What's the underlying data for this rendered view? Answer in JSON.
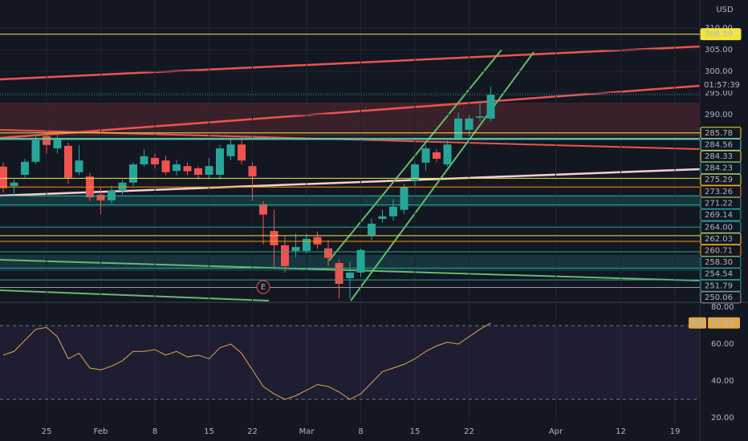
{
  "chart_data": [
    {
      "type": "candlestick",
      "currency": "USD",
      "countdown": "01:57:39",
      "event_marker": "E",
      "categories": [
        null,
        null,
        null,
        null,
        "25",
        null,
        null,
        null,
        null,
        "Feb",
        null,
        null,
        null,
        null,
        "8",
        null,
        null,
        null,
        null,
        "15",
        null,
        null,
        null,
        "22",
        null,
        null,
        null,
        null,
        "Mar",
        null,
        null,
        null,
        null,
        "8",
        null,
        null,
        null,
        null,
        "15",
        null,
        null,
        null,
        null,
        "22",
        null,
        null,
        null,
        null,
        null,
        null,
        null,
        "Apr",
        null,
        null,
        null,
        null,
        null,
        "12",
        null,
        null,
        null,
        null,
        "19",
        null,
        null
      ],
      "open": [
        278,
        273.5,
        276.1,
        279.1,
        285,
        282.2,
        282.8,
        276.7,
        275.7,
        271.5,
        270.2,
        272.4,
        274.3,
        278.5,
        280,
        279.4,
        277,
        278.1,
        277.6,
        276.1,
        276.1,
        280.4,
        283.1,
        278.1,
        269.3,
        263.1,
        259.8,
        258.5,
        258.5,
        261.7,
        259.1,
        255.7,
        252.2,
        253.5,
        262.2,
        265.9,
        266.5,
        268,
        274.8,
        278.9,
        281.3,
        278.5,
        284.6,
        286.5,
        289.3,
        289.1,
        null,
        null,
        null,
        null,
        null,
        null,
        null,
        null,
        null,
        null,
        null,
        null,
        null,
        null,
        null,
        null,
        null,
        null,
        null
      ],
      "high": [
        279,
        275,
        279.8,
        285.5,
        286,
        285.5,
        283.5,
        283,
        276.5,
        273,
        273.5,
        275,
        279,
        282,
        281,
        280.5,
        279.5,
        279,
        278,
        280,
        283,
        284.5,
        284.5,
        279,
        270,
        268,
        262,
        262.5,
        262.5,
        263,
        261,
        256.5,
        256,
        259,
        266,
        268,
        270.5,
        274,
        279,
        283,
        282,
        284,
        290.5,
        290,
        293,
        296.5,
        null,
        null,
        null,
        null,
        null,
        null,
        null,
        null,
        null,
        null,
        null,
        null,
        null,
        null,
        null,
        null,
        null,
        null,
        null
      ],
      "low": [
        272,
        271,
        275.5,
        278.5,
        281,
        281,
        274,
        276,
        270,
        267,
        269.5,
        271.5,
        273.5,
        278,
        277.5,
        276,
        276,
        276,
        275,
        275,
        275,
        279.5,
        278.5,
        270,
        260,
        254.4,
        253.5,
        257,
        258,
        259,
        255,
        247.5,
        247.5,
        252.5,
        261,
        265,
        265.5,
        267,
        273.5,
        277,
        279,
        278,
        284,
        285,
        288.5,
        288.5,
        null,
        null,
        null,
        null,
        null,
        null,
        null,
        null,
        null,
        null,
        null,
        null,
        null,
        null,
        null,
        null,
        null,
        null,
        null
      ],
      "close": [
        273,
        274.3,
        279.1,
        284.1,
        283,
        284.3,
        275.4,
        279.4,
        270.9,
        270.2,
        272.4,
        274.3,
        278.5,
        280.4,
        278.5,
        276.7,
        278.5,
        276.9,
        276.1,
        278.1,
        282.2,
        283.1,
        279.4,
        275.7,
        266.9,
        259.8,
        255,
        259.4,
        261.3,
        260,
        256.9,
        250.9,
        253.5,
        258.7,
        264.8,
        266.5,
        268.7,
        273.3,
        278.5,
        282.2,
        279.8,
        283.1,
        289.1,
        289.1,
        289.6,
        294.6,
        null,
        null,
        null,
        null,
        null,
        null,
        null,
        null,
        null,
        null,
        null,
        null,
        null,
        null,
        null,
        null,
        null,
        null,
        null
      ],
      "up_color": "#26a69a",
      "down_color": "#ef5350",
      "ylim": [
        247,
        316.5
      ],
      "yticks": [
        {
          "value": 290,
          "label": "290.00"
        },
        {
          "value": 295,
          "label": "295.00"
        },
        {
          "value": 300,
          "label": "300.00"
        },
        {
          "value": 305,
          "label": "305.00"
        },
        {
          "value": 310,
          "label": "310.00"
        }
      ],
      "levels": [
        {
          "value": 308.59,
          "label": "308.59",
          "color": "#f0e442"
        },
        {
          "value": 285.78,
          "label": "285.78",
          "color": "#f0e442"
        },
        {
          "value": 284.56,
          "label": "284.56",
          "color": "#4dd0e1"
        },
        {
          "value": 284.33,
          "label": "284.33",
          "color": "#f0e442"
        },
        {
          "value": 284.23,
          "label": "284.23",
          "color": "#26a69a"
        },
        {
          "value": 275.29,
          "label": "275.29",
          "color": "#f0e442"
        },
        {
          "value": 273.26,
          "label": "273.26",
          "color": "#ff9800"
        },
        {
          "value": 271.22,
          "label": "271.22",
          "color": "#26a69a"
        },
        {
          "value": 269.14,
          "label": "269.14",
          "color": "#26a69a"
        },
        {
          "value": 264,
          "label": "264.00",
          "color": "#26a69a"
        },
        {
          "value": 262.03,
          "label": "262.03",
          "color": "#f0e442"
        },
        {
          "value": 260.71,
          "label": "260.71",
          "color": "#ff9800"
        },
        {
          "value": 258.3,
          "label": "258.30",
          "color": "#26a69a"
        },
        {
          "value": 254.54,
          "label": "254.54",
          "color": "#26a69a"
        },
        {
          "value": 251.79,
          "label": "251.79",
          "color": "#26a69a"
        },
        {
          "value": 250.06,
          "label": "250.06",
          "color": "#9598a1"
        }
      ]
    },
    {
      "type": "line",
      "name": "RSI",
      "color": "#e0a84b",
      "last_value": 71.43,
      "values": [
        54,
        56,
        62,
        68,
        69,
        64,
        52,
        55,
        47,
        46,
        48,
        51,
        56,
        56,
        57,
        54,
        56,
        53,
        54,
        52,
        58,
        60,
        55,
        46,
        37,
        33,
        30,
        32,
        35,
        38,
        37,
        34,
        30,
        33,
        39,
        45,
        47,
        49,
        52,
        56,
        59,
        61,
        60,
        64,
        68,
        71.43,
        null,
        null,
        null,
        null,
        null,
        null,
        null,
        null,
        null,
        null,
        null,
        null,
        null,
        null,
        null,
        null,
        null,
        null,
        null
      ],
      "ylim": [
        17,
        82.2
      ],
      "yticks": [
        {
          "value": 20,
          "label": "20.00"
        },
        {
          "value": 40,
          "label": "40.00"
        },
        {
          "value": 60,
          "label": "60.00"
        },
        {
          "value": 80,
          "label": "80.00"
        }
      ],
      "levels": [
        70,
        30
      ]
    }
  ]
}
